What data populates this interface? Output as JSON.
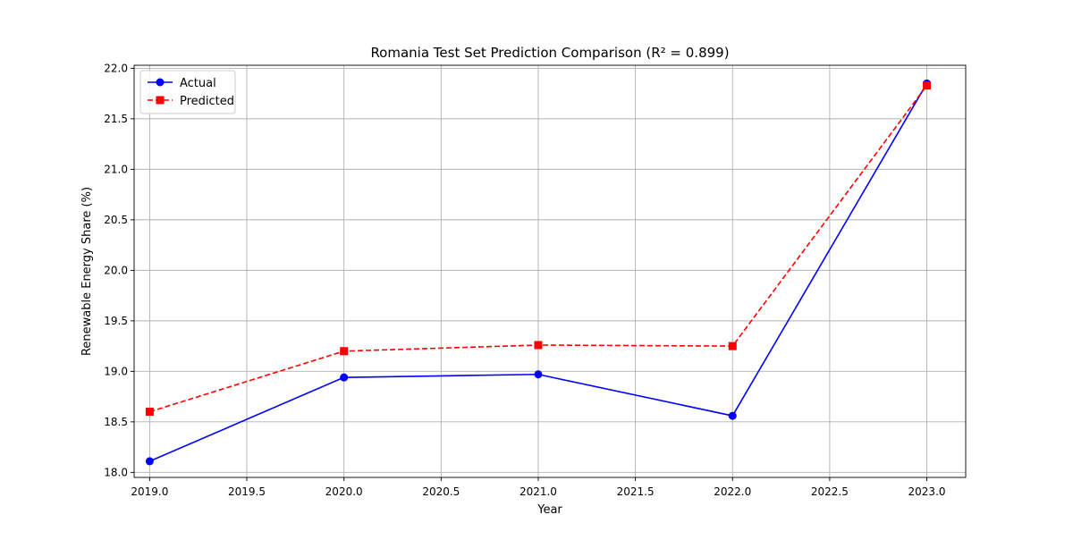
{
  "chart_data": {
    "type": "line",
    "title": "Romania Test Set Prediction Comparison (R² = 0.899)",
    "xlabel": "Year",
    "ylabel": "Renewable Energy Share (%)",
    "xlim": [
      2018.92,
      2023.2
    ],
    "ylim": [
      17.95,
      22.03
    ],
    "x_ticks": [
      2019.0,
      2019.5,
      2020.0,
      2020.5,
      2021.0,
      2021.5,
      2022.0,
      2022.5,
      2023.0
    ],
    "y_ticks": [
      18.0,
      18.5,
      19.0,
      19.5,
      20.0,
      20.5,
      21.0,
      21.5,
      22.0
    ],
    "grid": true,
    "legend_position": "top-left",
    "x": [
      2019,
      2020,
      2021,
      2022,
      2023
    ],
    "series": [
      {
        "name": "Actual",
        "values": [
          18.11,
          18.94,
          18.97,
          18.56,
          21.85
        ],
        "color": "#0000ff",
        "line_style": "solid",
        "marker": "circle"
      },
      {
        "name": "Predicted",
        "values": [
          18.6,
          19.2,
          19.26,
          19.25,
          21.83
        ],
        "color": "#ff0000",
        "line_style": "dashed",
        "marker": "square"
      }
    ]
  }
}
